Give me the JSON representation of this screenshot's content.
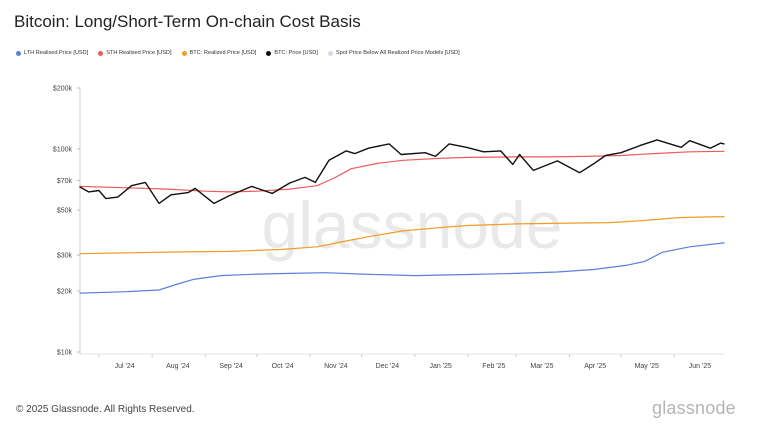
{
  "title": "Bitcoin: Long/Short-Term On-chain Cost Basis",
  "footer": "© 2025 Glassnode. All Rights Reserved.",
  "brand": "glassnode",
  "watermark": "glassnode",
  "legend": [
    {
      "label": "LTH Realised Price [USD]",
      "color": "#5b7fdb"
    },
    {
      "label": "STH Realised Price [USD]",
      "color": "#ef5a5a"
    },
    {
      "label": "BTC: Realized Price [USD]",
      "color": "#f39b26"
    },
    {
      "label": "BTC: Price [USD]",
      "color": "#111111"
    },
    {
      "label": "Spot Price Below All Realized Price Models [USD]",
      "color": "#d8d6f2"
    }
  ],
  "chart_data": {
    "type": "line",
    "title": "Bitcoin: Long/Short-Term On-chain Cost Basis",
    "y_scale": "log",
    "ylim": [
      10000,
      200000
    ],
    "y_ticks": [
      {
        "value": 200000,
        "label": "$200k"
      },
      {
        "value": 100000,
        "label": "$100k"
      },
      {
        "value": 70000,
        "label": "$70k"
      },
      {
        "value": 50000,
        "label": "$50k"
      },
      {
        "value": 30000,
        "label": "$30k"
      },
      {
        "value": 20000,
        "label": "$20k"
      },
      {
        "value": 10000,
        "label": "$10k"
      }
    ],
    "xlim": [
      "2024-06-20",
      "2025-06-30"
    ],
    "x_ticks": [
      {
        "date": "2024-07-01",
        "label": "Jul '24"
      },
      {
        "date": "2024-08-01",
        "label": "Aug '24"
      },
      {
        "date": "2024-09-01",
        "label": "Sep '24"
      },
      {
        "date": "2024-10-01",
        "label": "Oct '24"
      },
      {
        "date": "2024-11-01",
        "label": "Nov '24"
      },
      {
        "date": "2024-12-01",
        "label": "Dec '24"
      },
      {
        "date": "2025-01-01",
        "label": "Jan '25"
      },
      {
        "date": "2025-02-01",
        "label": "Feb '25"
      },
      {
        "date": "2025-03-01",
        "label": "Mar '25"
      },
      {
        "date": "2025-04-01",
        "label": "Apr '25"
      },
      {
        "date": "2025-05-01",
        "label": "May '25"
      },
      {
        "date": "2025-06-01",
        "label": "Jun '25"
      }
    ],
    "grid": false,
    "legend_position": "top-left",
    "series": [
      {
        "name": "LTH Realised Price [USD]",
        "color": "#5b7fdb",
        "points": [
          [
            "2024-06-20",
            19500
          ],
          [
            "2024-07-15",
            19800
          ],
          [
            "2024-08-05",
            20200
          ],
          [
            "2024-08-15",
            21500
          ],
          [
            "2024-08-25",
            22800
          ],
          [
            "2024-09-10",
            23800
          ],
          [
            "2024-10-01",
            24200
          ],
          [
            "2024-10-20",
            24400
          ],
          [
            "2024-11-10",
            24600
          ],
          [
            "2024-12-01",
            24200
          ],
          [
            "2025-01-01",
            23800
          ],
          [
            "2025-02-01",
            24100
          ],
          [
            "2025-03-01",
            24400
          ],
          [
            "2025-03-25",
            24800
          ],
          [
            "2025-04-15",
            25500
          ],
          [
            "2025-05-05",
            26800
          ],
          [
            "2025-05-15",
            28000
          ],
          [
            "2025-05-25",
            31000
          ],
          [
            "2025-06-10",
            33000
          ],
          [
            "2025-06-30",
            34500
          ]
        ]
      },
      {
        "name": "STH Realised Price [USD]",
        "color": "#ef5a5a",
        "points": [
          [
            "2024-06-20",
            65500
          ],
          [
            "2024-07-15",
            64500
          ],
          [
            "2024-08-10",
            63500
          ],
          [
            "2024-09-01",
            62000
          ],
          [
            "2024-09-15",
            61500
          ],
          [
            "2024-10-01",
            62000
          ],
          [
            "2024-10-20",
            63500
          ],
          [
            "2024-11-05",
            66000
          ],
          [
            "2024-11-15",
            72000
          ],
          [
            "2024-11-25",
            80000
          ],
          [
            "2024-12-10",
            85000
          ],
          [
            "2024-12-25",
            88000
          ],
          [
            "2025-01-15",
            90000
          ],
          [
            "2025-02-01",
            91000
          ],
          [
            "2025-03-01",
            91500
          ],
          [
            "2025-03-20",
            91500
          ],
          [
            "2025-04-10",
            92000
          ],
          [
            "2025-05-01",
            93000
          ],
          [
            "2025-05-20",
            95000
          ],
          [
            "2025-06-10",
            97000
          ],
          [
            "2025-06-30",
            97500
          ]
        ]
      },
      {
        "name": "BTC: Realized Price [USD]",
        "color": "#f39b26",
        "points": [
          [
            "2024-06-20",
            30500
          ],
          [
            "2024-07-15",
            30800
          ],
          [
            "2024-08-15",
            31100
          ],
          [
            "2024-09-15",
            31300
          ],
          [
            "2024-10-15",
            32000
          ],
          [
            "2024-11-05",
            33000
          ],
          [
            "2024-11-20",
            35000
          ],
          [
            "2024-12-05",
            37000
          ],
          [
            "2024-12-25",
            39500
          ],
          [
            "2025-01-15",
            41000
          ],
          [
            "2025-02-01",
            42000
          ],
          [
            "2025-03-01",
            42800
          ],
          [
            "2025-04-01",
            43200
          ],
          [
            "2025-04-25",
            43400
          ],
          [
            "2025-05-15",
            44500
          ],
          [
            "2025-06-05",
            46000
          ],
          [
            "2025-06-30",
            46500
          ]
        ]
      },
      {
        "name": "BTC: Price [USD]",
        "color": "#111111",
        "points": [
          [
            "2024-06-20",
            65000
          ],
          [
            "2024-06-25",
            61500
          ],
          [
            "2024-07-01",
            62500
          ],
          [
            "2024-07-05",
            57000
          ],
          [
            "2024-07-12",
            58000
          ],
          [
            "2024-07-20",
            66000
          ],
          [
            "2024-07-28",
            68500
          ],
          [
            "2024-08-05",
            54000
          ],
          [
            "2024-08-12",
            59500
          ],
          [
            "2024-08-22",
            61000
          ],
          [
            "2024-08-26",
            64000
          ],
          [
            "2024-09-06",
            54000
          ],
          [
            "2024-09-15",
            59000
          ],
          [
            "2024-09-28",
            65500
          ],
          [
            "2024-10-10",
            60500
          ],
          [
            "2024-10-20",
            68000
          ],
          [
            "2024-10-29",
            72500
          ],
          [
            "2024-11-04",
            68500
          ],
          [
            "2024-11-12",
            88000
          ],
          [
            "2024-11-22",
            98000
          ],
          [
            "2024-11-27",
            95000
          ],
          [
            "2024-12-05",
            101000
          ],
          [
            "2024-12-17",
            106000
          ],
          [
            "2024-12-24",
            94000
          ],
          [
            "2025-01-07",
            96000
          ],
          [
            "2025-01-13",
            92000
          ],
          [
            "2025-01-21",
            106000
          ],
          [
            "2025-01-31",
            102000
          ],
          [
            "2025-02-10",
            97000
          ],
          [
            "2025-02-20",
            98000
          ],
          [
            "2025-02-27",
            84000
          ],
          [
            "2025-03-03",
            94000
          ],
          [
            "2025-03-11",
            78500
          ],
          [
            "2025-03-25",
            87500
          ],
          [
            "2025-04-07",
            76500
          ],
          [
            "2025-04-15",
            84500
          ],
          [
            "2025-04-22",
            93000
          ],
          [
            "2025-05-01",
            96000
          ],
          [
            "2025-05-12",
            104000
          ],
          [
            "2025-05-22",
            111000
          ],
          [
            "2025-06-05",
            102000
          ],
          [
            "2025-06-10",
            110000
          ],
          [
            "2025-06-22",
            101000
          ],
          [
            "2025-06-28",
            107000
          ],
          [
            "2025-06-30",
            106000
          ]
        ]
      }
    ]
  }
}
